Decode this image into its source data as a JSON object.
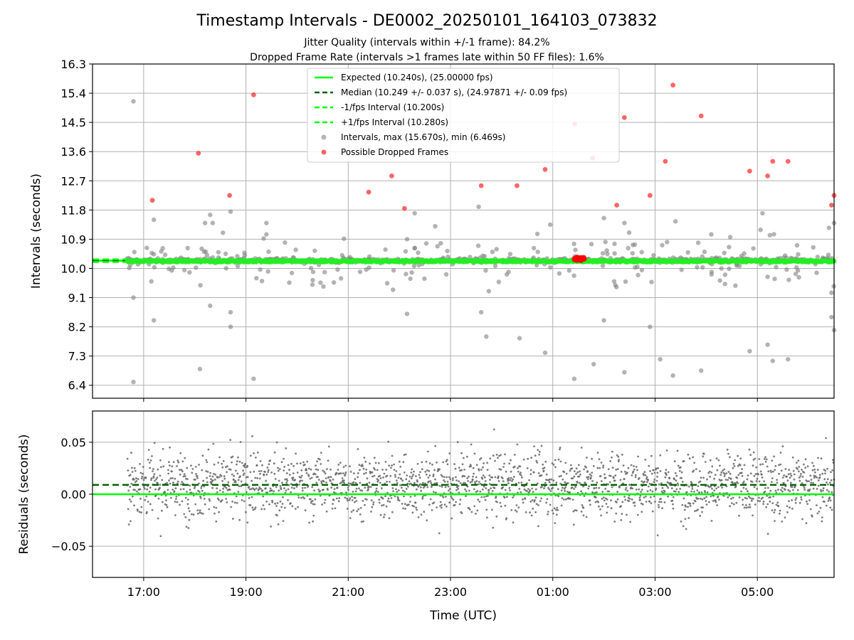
{
  "chart_data": [
    {
      "type": "scatter",
      "title": "Timestamp Intervals - DE0002_20250101_164103_073832",
      "subtitle_lines": [
        "Jitter Quality (intervals within +/-1 frame): 84.2%",
        "Dropped Frame Rate (intervals >1 frames late within 50 FF files): 1.6%"
      ],
      "xlabel": "",
      "ylabel": "Intervals (seconds)",
      "ylim": [
        6.0,
        16.3
      ],
      "yticks": [
        "6.4",
        "7.3",
        "8.2",
        "9.1",
        "10.0",
        "10.9",
        "11.8",
        "12.7",
        "13.6",
        "14.5",
        "15.4",
        "16.3"
      ],
      "xticks": [
        "17:00",
        "19:00",
        "21:00",
        "23:00",
        "01:00",
        "03:00",
        "05:00"
      ],
      "xlim_hours": [
        16.0,
        30.5
      ],
      "grid": true,
      "legend_position": "top-center",
      "lines": [
        {
          "name": "Expected (10.240s), (25.00000 fps)",
          "y": 10.24,
          "style": "solid",
          "color": "#00ff00"
        },
        {
          "name": "Median (10.249 +/- 0.037 s), (24.97871 +/- 0.09 fps)",
          "y": 10.249,
          "style": "dashed",
          "color": "#006400"
        },
        {
          "name": "-1/fps Interval (10.200s)",
          "y": 10.2,
          "style": "dashed",
          "color": "#00ff00"
        },
        {
          "name": "+1/fps Interval (10.280s)",
          "y": 10.28,
          "style": "dashed",
          "color": "#00ff00"
        }
      ],
      "series": [
        {
          "name": "Intervals, max (15.670s), min (6.469s)",
          "color": "#808080",
          "max": 15.67,
          "min": 6.469
        },
        {
          "name": "Possible Dropped Frames",
          "color": "#ff0000"
        }
      ],
      "dropped_frames": {
        "x": [
          17.17,
          18.07,
          18.68,
          19.15,
          21.4,
          21.85,
          22.1,
          23.6,
          24.3,
          24.85,
          25.43,
          25.78,
          26.25,
          26.4,
          26.9,
          27.2,
          27.35,
          27.9,
          28.85,
          29.2,
          29.3,
          29.6,
          30.45,
          30.5
        ],
        "y": [
          12.1,
          13.55,
          12.25,
          15.35,
          12.35,
          12.85,
          11.85,
          12.55,
          12.55,
          13.05,
          14.45,
          13.4,
          11.95,
          14.65,
          12.25,
          13.3,
          15.65,
          14.7,
          13.0,
          12.85,
          13.3,
          13.3,
          11.95,
          12.25
        ]
      }
    },
    {
      "type": "scatter",
      "title": "",
      "xlabel": "Time (UTC)",
      "ylabel": "Residuals (seconds)",
      "ylim": [
        -0.08,
        0.08
      ],
      "yticks": [
        "−0.05",
        "0.00",
        "0.05"
      ],
      "xticks": [
        "17:00",
        "19:00",
        "21:00",
        "23:00",
        "01:00",
        "03:00",
        "05:00"
      ],
      "xlim_hours": [
        16.0,
        30.5
      ],
      "grid": true,
      "lines": [
        {
          "y": 0.0,
          "style": "solid",
          "color": "#00ff00"
        },
        {
          "y": 0.009,
          "style": "dashed",
          "color": "#006400"
        }
      ],
      "series": [
        {
          "color": "#808080"
        }
      ]
    }
  ]
}
